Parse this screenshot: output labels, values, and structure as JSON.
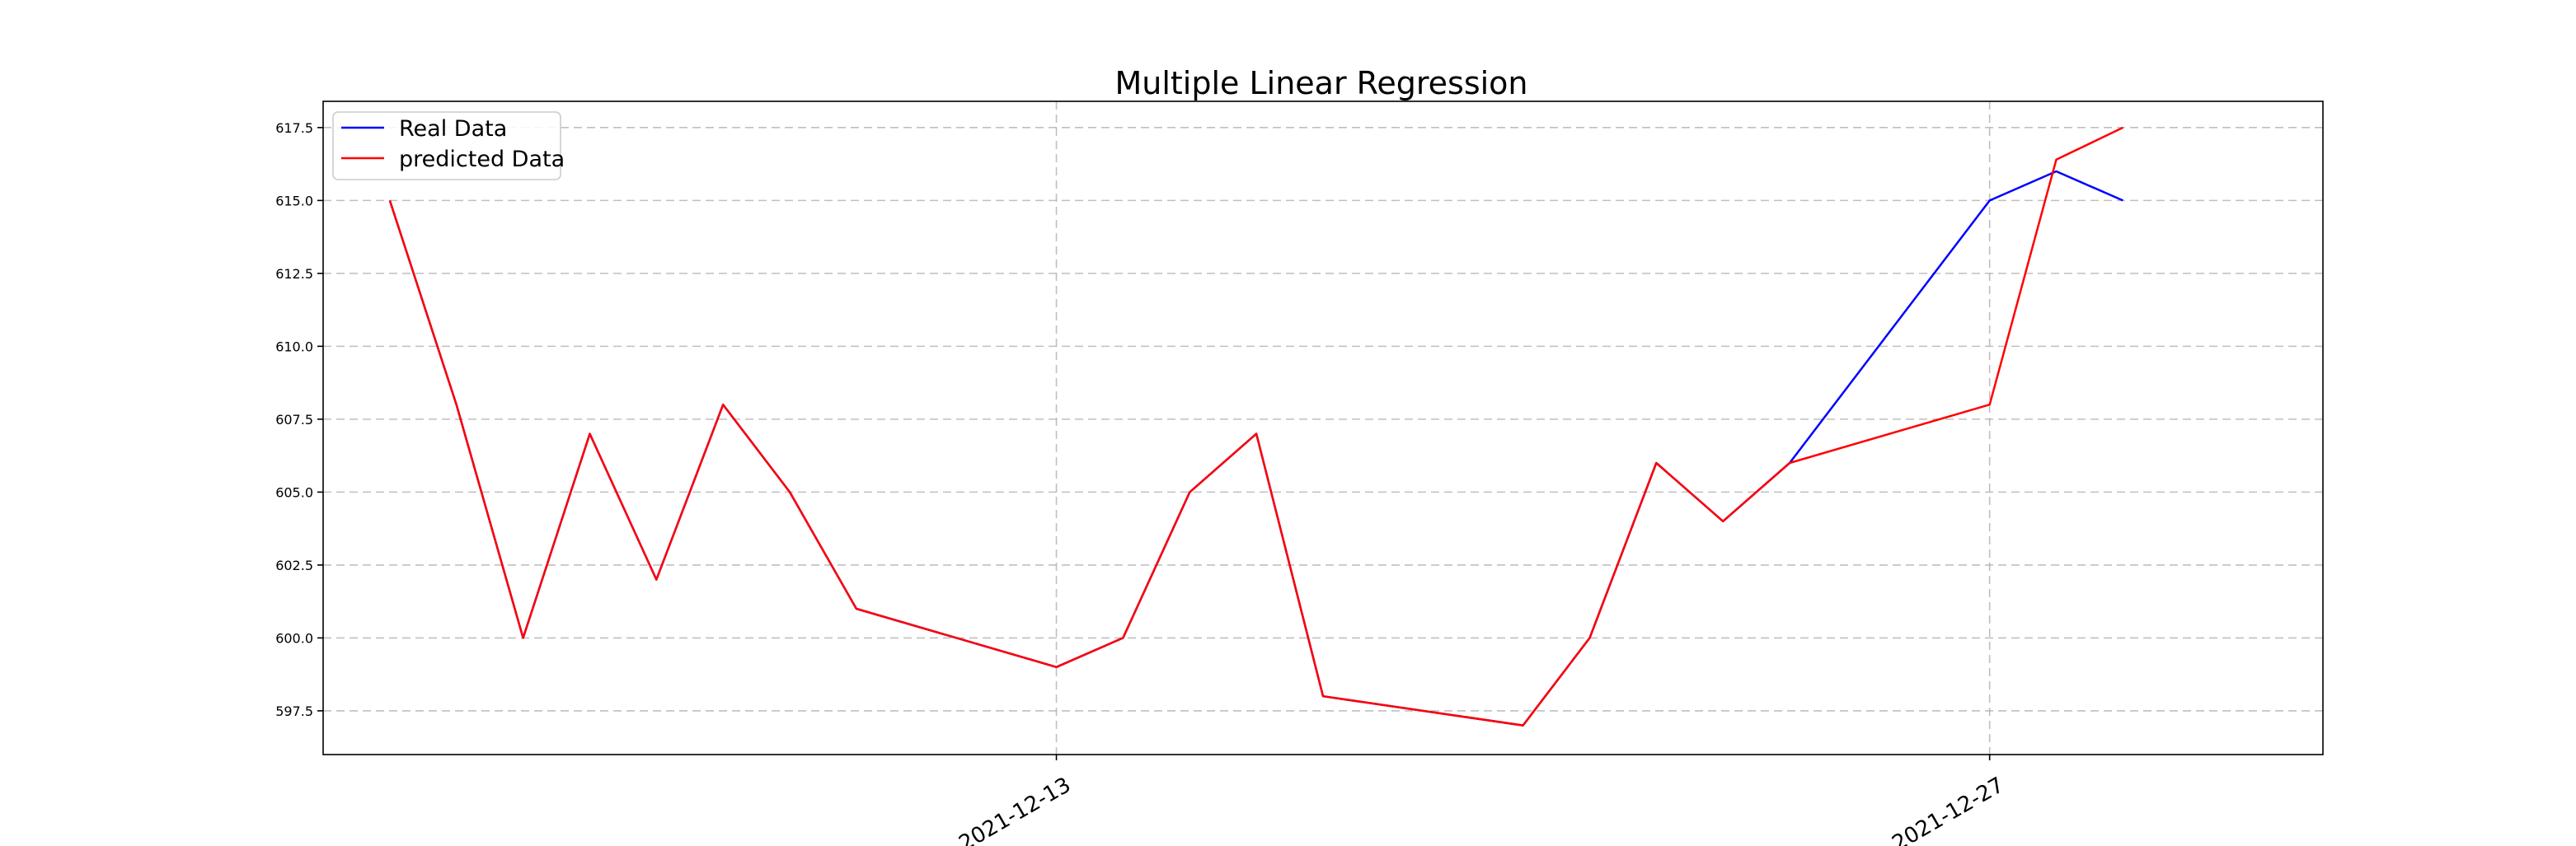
{
  "chart_data": {
    "type": "line",
    "title": "Multiple Linear Regression",
    "xlabel": "",
    "ylabel": "",
    "x": [
      "2021-12-02",
      "2021-12-03",
      "2021-12-04",
      "2021-12-05",
      "2021-12-06",
      "2021-12-07",
      "2021-12-08",
      "2021-12-09",
      "2021-12-10",
      "2021-12-11",
      "2021-12-12",
      "2021-12-13",
      "2021-12-14",
      "2021-12-15",
      "2021-12-16",
      "2021-12-17",
      "2021-12-18",
      "2021-12-19",
      "2021-12-20",
      "2021-12-21",
      "2021-12-22",
      "2021-12-23",
      "2021-12-24",
      "2021-12-25",
      "2021-12-26",
      "2021-12-27",
      "2021-12-28",
      "2021-12-29",
      "2021-12-30",
      "2021-12-31",
      "2022-01-01"
    ],
    "xlim": [
      "2021-12-02",
      "2022-01-01"
    ],
    "xticks": [
      "2021-12-13",
      "2021-12-27"
    ],
    "ylim": [
      596.0,
      618.4
    ],
    "yticks": [
      "597.5",
      "600.0",
      "602.5",
      "605.0",
      "607.5",
      "610.0",
      "612.5",
      "615.0",
      "617.5"
    ],
    "grid": true,
    "legend_position": "upper-left",
    "series": [
      {
        "name": "Real Data",
        "color": "#0000ff",
        "points": [
          [
            "2021-12-03",
            615.0
          ],
          [
            "2021-12-04",
            608.0
          ],
          [
            "2021-12-05",
            600.0
          ],
          [
            "2021-12-06",
            607.0
          ],
          [
            "2021-12-07",
            602.0
          ],
          [
            "2021-12-08",
            608.0
          ],
          [
            "2021-12-09",
            605.0
          ],
          [
            "2021-12-10",
            601.0
          ],
          [
            "2021-12-13",
            599.0
          ],
          [
            "2021-12-14",
            600.0
          ],
          [
            "2021-12-15",
            605.0
          ],
          [
            "2021-12-16",
            607.0
          ],
          [
            "2021-12-17",
            598.0
          ],
          [
            "2021-12-20",
            597.0
          ],
          [
            "2021-12-21",
            600.0
          ],
          [
            "2021-12-22",
            606.0
          ],
          [
            "2021-12-23",
            604.0
          ],
          [
            "2021-12-24",
            606.0
          ],
          [
            "2021-12-27",
            615.0
          ],
          [
            "2021-12-28",
            616.0
          ],
          [
            "2021-12-29",
            615.0
          ]
        ]
      },
      {
        "name": "predicted Data",
        "color": "#ff0000",
        "points": [
          [
            "2021-12-03",
            615.0
          ],
          [
            "2021-12-04",
            608.0
          ],
          [
            "2021-12-05",
            600.0
          ],
          [
            "2021-12-06",
            607.0
          ],
          [
            "2021-12-07",
            602.0
          ],
          [
            "2021-12-08",
            608.0
          ],
          [
            "2021-12-09",
            605.0
          ],
          [
            "2021-12-10",
            601.0
          ],
          [
            "2021-12-13",
            599.0
          ],
          [
            "2021-12-14",
            600.0
          ],
          [
            "2021-12-15",
            605.0
          ],
          [
            "2021-12-16",
            607.0
          ],
          [
            "2021-12-17",
            598.0
          ],
          [
            "2021-12-20",
            597.0
          ],
          [
            "2021-12-21",
            600.0
          ],
          [
            "2021-12-22",
            606.0
          ],
          [
            "2021-12-23",
            604.0
          ],
          [
            "2021-12-24",
            606.0
          ],
          [
            "2021-12-27",
            608.0
          ],
          [
            "2021-12-28",
            616.4
          ],
          [
            "2021-12-29",
            617.5
          ]
        ]
      }
    ]
  }
}
